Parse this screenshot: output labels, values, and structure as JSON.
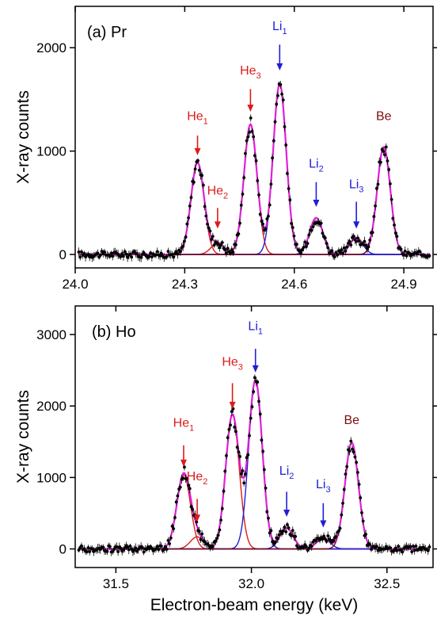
{
  "chart_data": [
    {
      "type": "scatter",
      "panel_label": "(a) Pr",
      "ylabel": "X-ray counts",
      "xlim": [
        24.0,
        24.98
      ],
      "ylim": [
        -130,
        2400
      ],
      "xticks": [
        24.0,
        24.3,
        24.6,
        24.9
      ],
      "xtick_labels": [
        "24.0",
        "24.3",
        "24.6",
        "24.9"
      ],
      "yticks": [
        0,
        1000,
        2000
      ],
      "ytick_labels": [
        "0",
        "1000",
        "2000"
      ],
      "grid": false,
      "peaks": [
        {
          "name": "He",
          "sub": "1",
          "x": 24.335,
          "height": 890,
          "sigma": 0.018,
          "arrow_from": 1150,
          "arrow_to": 960,
          "label_y": 1300,
          "color": "#dd1c1c"
        },
        {
          "name": "He",
          "sub": "2",
          "x": 24.39,
          "height": 110,
          "sigma": 0.018,
          "arrow_from": 450,
          "arrow_to": 250,
          "label_y": 580,
          "color": "#dd1c1c"
        },
        {
          "name": "He",
          "sub": "3",
          "x": 24.48,
          "height": 1260,
          "sigma": 0.018,
          "arrow_from": 1600,
          "arrow_to": 1380,
          "label_y": 1740,
          "color": "#dd1c1c"
        },
        {
          "name": "Li",
          "sub": "1",
          "x": 24.56,
          "height": 1650,
          "sigma": 0.018,
          "arrow_from": 2030,
          "arrow_to": 1780,
          "label_y": 2170,
          "color": "#1f1fd6"
        },
        {
          "name": "Li",
          "sub": "2",
          "x": 24.66,
          "height": 355,
          "sigma": 0.018,
          "arrow_from": 700,
          "arrow_to": 460,
          "label_y": 840,
          "color": "#1f1fd6"
        },
        {
          "name": "Li",
          "sub": "3",
          "x": 24.77,
          "height": 160,
          "sigma": 0.018,
          "arrow_from": 510,
          "arrow_to": 250,
          "label_y": 640,
          "color": "#1f1fd6"
        },
        {
          "name": "Be",
          "sub": "",
          "x": 24.845,
          "height": 1040,
          "sigma": 0.018,
          "arrow_from": null,
          "arrow_to": null,
          "label_y": 1300,
          "color": "#7a0e0e"
        }
      ],
      "series": [
        {
          "name": "data",
          "color": "#000000"
        },
        {
          "name": "total fit",
          "color": "#e020d8"
        }
      ]
    },
    {
      "type": "scatter",
      "panel_label": "(b) Ho",
      "ylabel": "X-ray counts",
      "xlabel": "Electron-beam energy (keV)",
      "xlim": [
        31.35,
        32.67
      ],
      "ylim": [
        -260,
        3400
      ],
      "xticks": [
        31.5,
        32.0,
        32.5
      ],
      "xtick_labels": [
        "31.5",
        "32.0",
        "32.5"
      ],
      "yticks": [
        0,
        1000,
        2000,
        3000
      ],
      "ytick_labels": [
        "0",
        "1000",
        "2000",
        "3000"
      ],
      "grid": false,
      "peaks": [
        {
          "name": "He",
          "sub": "1",
          "x": 31.75,
          "height": 1040,
          "sigma": 0.025,
          "arrow_from": 1450,
          "arrow_to": 1150,
          "label_y": 1710,
          "color": "#dd1c1c"
        },
        {
          "name": "He",
          "sub": "2",
          "x": 31.8,
          "height": 170,
          "sigma": 0.025,
          "arrow_from": 700,
          "arrow_to": 380,
          "label_y": 960,
          "color": "#dd1c1c"
        },
        {
          "name": "He",
          "sub": "3",
          "x": 31.93,
          "height": 1880,
          "sigma": 0.025,
          "arrow_from": 2320,
          "arrow_to": 1960,
          "label_y": 2560,
          "color": "#dd1c1c"
        },
        {
          "name": "Li",
          "sub": "1",
          "x": 32.015,
          "height": 2360,
          "sigma": 0.025,
          "arrow_from": 2800,
          "arrow_to": 2470,
          "label_y": 3060,
          "color": "#1f1fd6"
        },
        {
          "name": "Li",
          "sub": "2",
          "x": 32.13,
          "height": 290,
          "sigma": 0.025,
          "arrow_from": 800,
          "arrow_to": 450,
          "label_y": 1040,
          "color": "#1f1fd6"
        },
        {
          "name": "Li",
          "sub": "3",
          "x": 32.265,
          "height": 150,
          "sigma": 0.025,
          "arrow_from": 640,
          "arrow_to": 300,
          "label_y": 850,
          "color": "#1f1fd6"
        },
        {
          "name": "Be",
          "sub": "",
          "x": 32.37,
          "height": 1490,
          "sigma": 0.025,
          "arrow_from": null,
          "arrow_to": null,
          "label_y": 1750,
          "color": "#7a0e0e"
        }
      ],
      "series": [
        {
          "name": "data",
          "color": "#000000"
        },
        {
          "name": "total fit",
          "color": "#e020d8"
        }
      ]
    }
  ]
}
